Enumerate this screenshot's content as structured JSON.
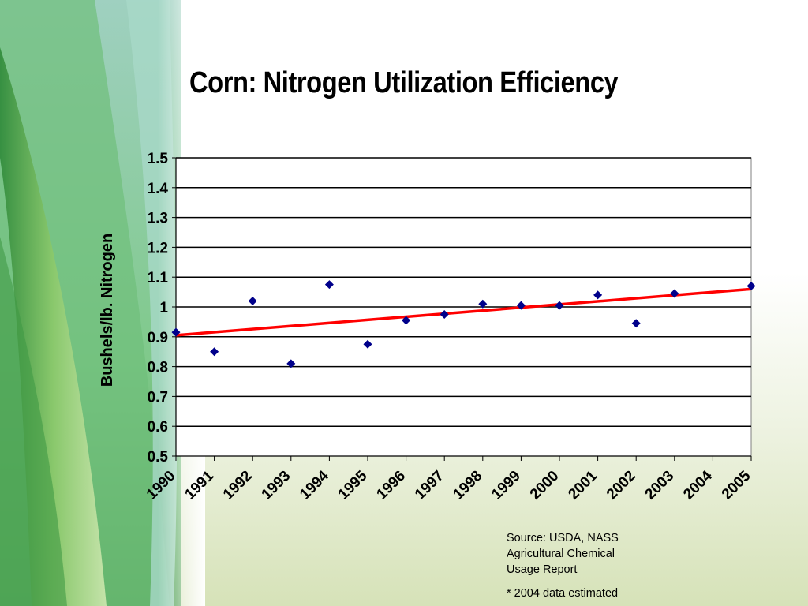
{
  "slide": {
    "title": "Corn: Nitrogen Utilization Efficiency",
    "source_lines": [
      "Source: USDA, NASS",
      "Agricultural Chemical",
      "Usage Report"
    ],
    "footnote": "* 2004 data estimated"
  },
  "colors": {
    "marker": "#00008b",
    "trendline": "#ff0000",
    "gridline": "#000000",
    "plot_background": "#ffffff"
  },
  "chart_data": {
    "type": "scatter",
    "title": "Corn: Nitrogen Utilization Efficiency",
    "xlabel": "",
    "ylabel": "Bushels/lb. Nitrogen",
    "categories": [
      "1990",
      "1991",
      "1992",
      "1993",
      "1994",
      "1995",
      "1996",
      "1997",
      "1998",
      "1999",
      "2000",
      "2001",
      "2002",
      "2003",
      "2004",
      "2005"
    ],
    "series": [
      {
        "values": [
          0.915,
          0.85,
          1.02,
          0.81,
          1.075,
          0.875,
          0.955,
          0.975,
          1.01,
          1.005,
          1.005,
          1.04,
          0.945,
          1.045,
          null,
          1.07
        ]
      }
    ],
    "trendline": {
      "type": "linear",
      "start": 0.905,
      "end": 1.06
    },
    "ylim": [
      0.5,
      1.5
    ],
    "yticks": [
      "0.5",
      "0.6",
      "0.7",
      "0.8",
      "0.9",
      "1",
      "1.1",
      "1.2",
      "1.3",
      "1.4",
      "1.5"
    ],
    "grid": true,
    "legend": "none"
  }
}
